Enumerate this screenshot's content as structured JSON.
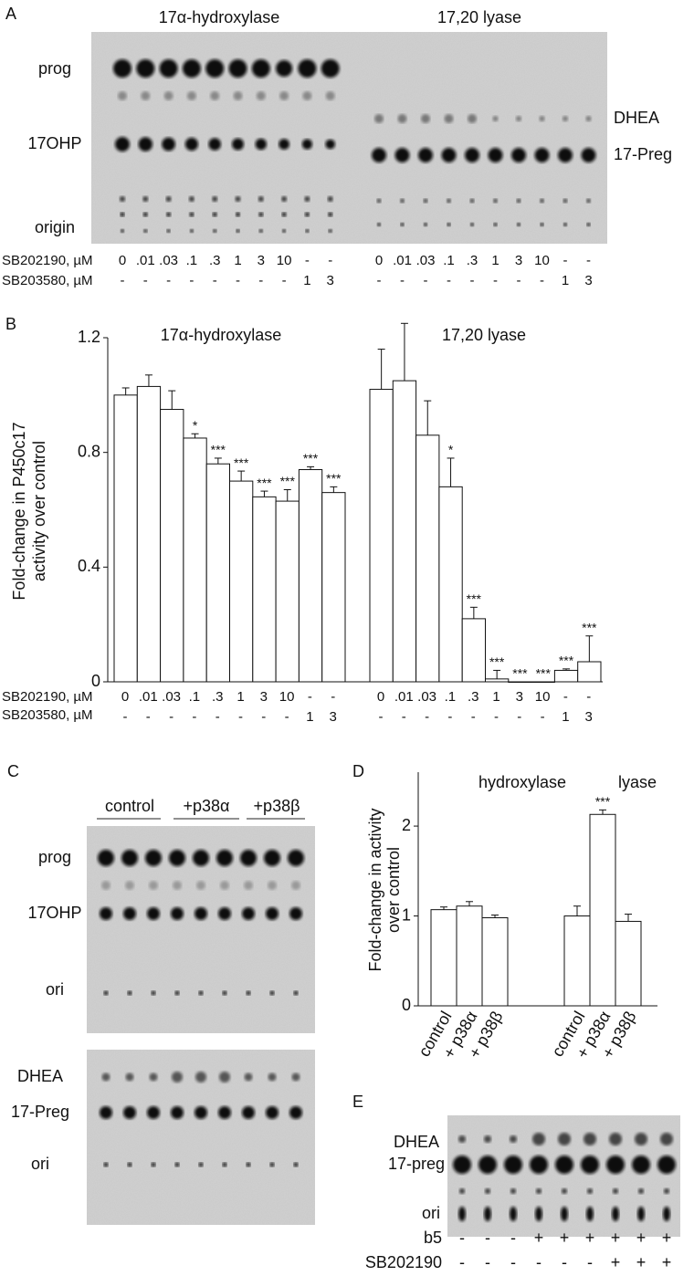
{
  "panel_a": {
    "label": "A",
    "titles": [
      "17α-hydroxylase",
      "17,20 lyase"
    ],
    "left_labels": [
      "prog",
      "17OHP",
      "origin"
    ],
    "right_labels": [
      "DHEA",
      "17-Preg"
    ]
  },
  "chart_data": [
    {
      "type": "bar",
      "panel_label": "B",
      "ylabel": [
        "Fold-change in P450c17",
        "activity over control"
      ],
      "ylim": [
        0,
        1.2
      ],
      "yticks": [
        0,
        0.4,
        0.8,
        1.2
      ],
      "treatments": [
        {
          "name": "SB202190, µM",
          "levels": [
            "0",
            ".01",
            ".03",
            ".1",
            ".3",
            "1",
            "3",
            "10",
            "-",
            "-"
          ]
        },
        {
          "name": "SB203580, µM",
          "levels": [
            "-",
            "-",
            "-",
            "-",
            "-",
            "-",
            "-",
            "-",
            "1",
            "3"
          ]
        }
      ],
      "groups": [
        {
          "title": "17α-hydroxylase",
          "values": [
            1.0,
            1.03,
            0.95,
            0.85,
            0.76,
            0.7,
            0.645,
            0.63,
            0.74,
            0.66
          ],
          "errors": [
            0.025,
            0.04,
            0.065,
            0.015,
            0.02,
            0.035,
            0.02,
            0.04,
            0.01,
            0.02
          ],
          "significance": [
            null,
            null,
            null,
            "*",
            "***",
            "***",
            "***",
            "***",
            "***",
            "***"
          ]
        },
        {
          "title": "17,20 lyase",
          "values": [
            1.02,
            1.05,
            0.86,
            0.68,
            0.22,
            0.01,
            0.0,
            0.0,
            0.04,
            0.07
          ],
          "errors": [
            0.14,
            0.2,
            0.12,
            0.1,
            0.04,
            0.03,
            0.0,
            0.0,
            0.005,
            0.09
          ],
          "significance": [
            null,
            null,
            null,
            "*",
            "***",
            "***",
            "***",
            "***",
            "***",
            "***"
          ]
        }
      ],
      "color": "#ffffff"
    },
    {
      "type": "bar",
      "panel_label": "D",
      "ylabel": [
        "Fold-change in activity",
        "over control"
      ],
      "ylim": [
        0,
        2.6
      ],
      "yticks": [
        0,
        1,
        2
      ],
      "categories": [
        "control",
        "+ p38α",
        "+ p38β"
      ],
      "groups": [
        {
          "title": "hydroxylase",
          "values": [
            1.07,
            1.11,
            0.98
          ],
          "errors": [
            0.03,
            0.05,
            0.03
          ],
          "significance": [
            null,
            null,
            null
          ]
        },
        {
          "title": "lyase",
          "values": [
            1.0,
            2.13,
            0.94
          ],
          "errors": [
            0.11,
            0.05,
            0.08
          ],
          "significance": [
            null,
            "***",
            null
          ]
        }
      ],
      "color": "#ffffff"
    }
  ],
  "panel_c": {
    "label": "C",
    "conditions": [
      "control",
      "+p38α",
      "+p38β"
    ],
    "upper_labels": [
      "prog",
      "17OHP",
      "ori"
    ],
    "lower_labels": [
      "DHEA",
      "17-Preg",
      "ori"
    ]
  },
  "panel_e": {
    "label": "E",
    "spot_labels": [
      "DHEA",
      "17-preg",
      "ori"
    ],
    "rows": [
      {
        "name": "b5",
        "levels": [
          "-",
          "-",
          "-",
          "+",
          "+",
          "+",
          "+",
          "+",
          "+"
        ]
      },
      {
        "name": "SB202190",
        "levels": [
          "-",
          "-",
          "-",
          "-",
          "-",
          "-",
          "+",
          "+",
          "+"
        ]
      }
    ]
  }
}
